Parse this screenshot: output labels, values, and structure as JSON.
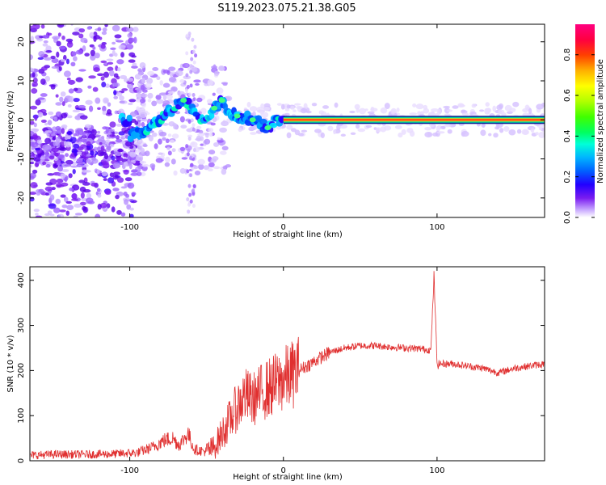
{
  "title": "S119.2023.075.21.38.G05",
  "chart_data": [
    {
      "type": "heatmap",
      "xlabel": "Height of straight line (km)",
      "ylabel": "Frequency (Hz)",
      "xlim": [
        -165,
        170
      ],
      "ylim": [
        -25,
        24.5
      ],
      "xticks": [
        -100,
        0,
        100
      ],
      "yticks": [
        -20,
        -10,
        0,
        10,
        20
      ],
      "colorbar": {
        "label": "Normalized spectral amplitude",
        "range": [
          0,
          0.95
        ],
        "ticks": [
          "0.0",
          "0.2",
          "0.4",
          "0.6",
          "0.8"
        ],
        "colormap": "gist_ncar-like (white, violet, blue, cyan, green, yellow, red, magenta)"
      },
      "ridge": [
        {
          "x": -100,
          "y": -4
        },
        {
          "x": -90,
          "y": -3
        },
        {
          "x": -80,
          "y": 0
        },
        {
          "x": -72,
          "y": 3
        },
        {
          "x": -65,
          "y": 5
        },
        {
          "x": -58,
          "y": 2
        },
        {
          "x": -52,
          "y": -1
        },
        {
          "x": -45,
          "y": 3
        },
        {
          "x": -40,
          "y": 5
        },
        {
          "x": -35,
          "y": 2
        },
        {
          "x": -30,
          "y": 1
        },
        {
          "x": -25,
          "y": 0.5
        },
        {
          "x": -20,
          "y": 0
        },
        {
          "x": -15,
          "y": -1
        },
        {
          "x": -10,
          "y": -2
        },
        {
          "x": -5,
          "y": 0
        },
        {
          "x": 0,
          "y": 0.5
        },
        {
          "x": 170,
          "y": 0
        }
      ]
    },
    {
      "type": "line",
      "xlabel": "Height of straight line (km)",
      "ylabel": "SNR (10 * v/v)",
      "xlim": [
        -165,
        170
      ],
      "ylim": [
        0,
        430
      ],
      "xticks": [
        -100,
        0,
        100
      ],
      "yticks": [
        0,
        100,
        200,
        300,
        400
      ],
      "color": "#e03030",
      "series": [
        {
          "x": [
            -165,
            -150,
            -130,
            -110,
            -95,
            -85,
            -78,
            -72,
            -68,
            -62,
            -58,
            -50,
            -45,
            -40,
            -35,
            -30,
            -25,
            -20,
            -15,
            -10,
            -5,
            0,
            10,
            20,
            30,
            40,
            50,
            60,
            70,
            80,
            90,
            96,
            98,
            100,
            102,
            110,
            120,
            130,
            140,
            150,
            160,
            170
          ],
          "y": [
            12,
            14,
            14,
            15,
            18,
            30,
            45,
            50,
            35,
            60,
            25,
            20,
            30,
            60,
            90,
            120,
            145,
            135,
            150,
            160,
            170,
            180,
            200,
            220,
            240,
            250,
            255,
            255,
            252,
            250,
            248,
            245,
            410,
            215,
            215,
            215,
            210,
            205,
            195,
            205,
            210,
            215
          ]
        }
      ]
    }
  ]
}
